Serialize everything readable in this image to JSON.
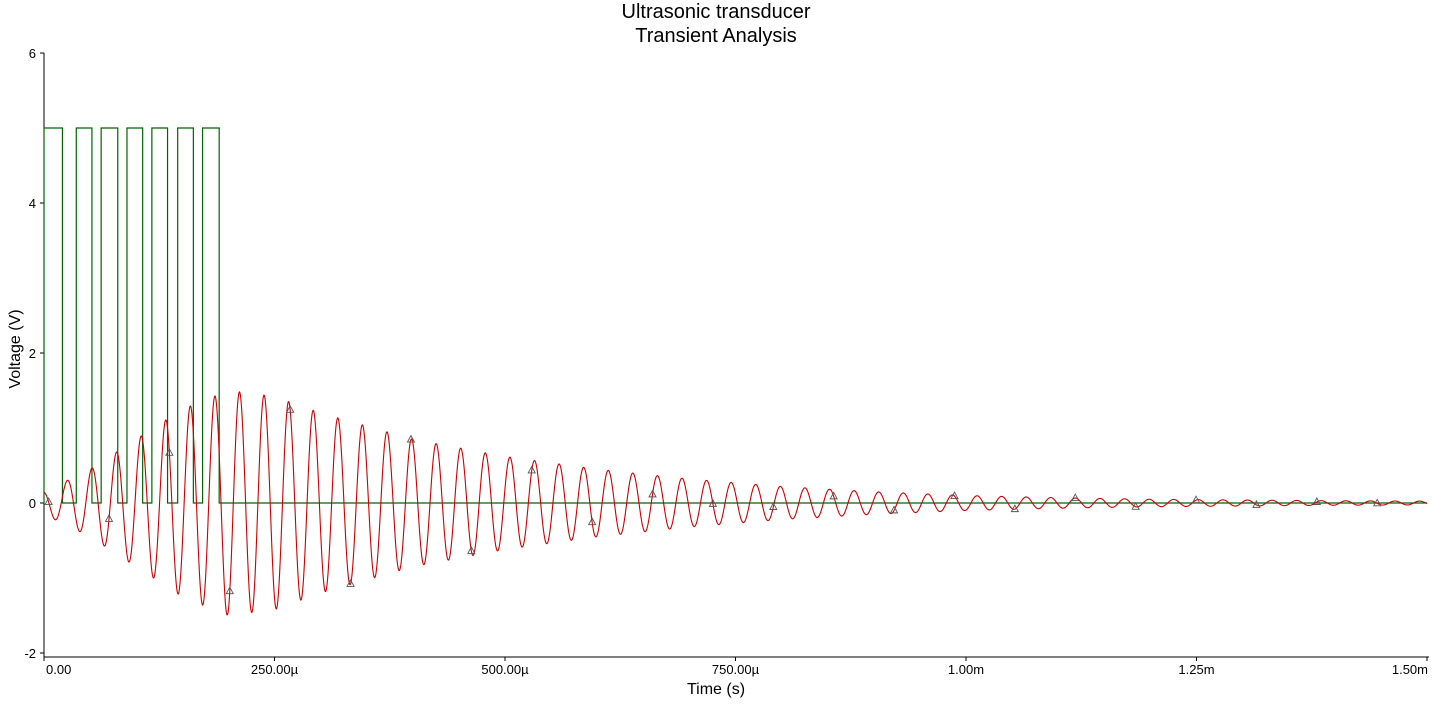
{
  "chart_data": {
    "type": "line",
    "title": "Ultrasonic transducer",
    "subtitle": "Transient Analysis",
    "xlabel": "Time (s)",
    "ylabel": "Voltage (V)",
    "xlim": [
      0,
      0.0015
    ],
    "ylim": [
      -2,
      6
    ],
    "x_ticks": [
      {
        "value": 0,
        "label": "0.00"
      },
      {
        "value": 0.00025,
        "label": "250.00µ"
      },
      {
        "value": 0.0005,
        "label": "500.00µ"
      },
      {
        "value": 0.00075,
        "label": "750.00µ"
      },
      {
        "value": 0.001,
        "label": "1.00m"
      },
      {
        "value": 0.00125,
        "label": "1.25m"
      },
      {
        "value": 0.0015,
        "label": "1.50m"
      }
    ],
    "y_ticks": [
      {
        "value": -2,
        "label": "-2"
      },
      {
        "value": 0,
        "label": "0"
      },
      {
        "value": 2,
        "label": "2"
      },
      {
        "value": 4,
        "label": "4"
      },
      {
        "value": 6,
        "label": "6"
      }
    ],
    "grid": false,
    "series": [
      {
        "color": "#006400",
        "style": "square-pulse-train",
        "high": 5,
        "low": 0,
        "pulses": [
          [
            0,
            2e-05
          ],
          [
            3.5e-05,
            5.2e-05
          ],
          [
            6.2e-05,
            8e-05
          ],
          [
            9e-05,
            0.000107
          ],
          [
            0.000117,
            0.000134
          ],
          [
            0.000145,
            0.000162
          ],
          [
            0.000172,
            0.00019
          ]
        ]
      },
      {
        "color": "#cc0000",
        "style": "damped-oscillation",
        "frequency_hz": 37500,
        "marker": "triangle",
        "envelope": [
          {
            "t": 0,
            "a": 0.15
          },
          {
            "t": 5e-05,
            "a": 0.45
          },
          {
            "t": 0.0001,
            "a": 0.85
          },
          {
            "t": 0.00015,
            "a": 1.25
          },
          {
            "t": 0.0002,
            "a": 1.5
          },
          {
            "t": 0.00025,
            "a": 1.42
          },
          {
            "t": 0.0003,
            "a": 1.2
          },
          {
            "t": 0.0004,
            "a": 0.85
          },
          {
            "t": 0.0005,
            "a": 0.62
          },
          {
            "t": 0.0006,
            "a": 0.45
          },
          {
            "t": 0.0007,
            "a": 0.32
          },
          {
            "t": 0.0008,
            "a": 0.22
          },
          {
            "t": 0.0009,
            "a": 0.15
          },
          {
            "t": 0.001,
            "a": 0.1
          },
          {
            "t": 0.0011,
            "a": 0.07
          },
          {
            "t": 0.0012,
            "a": 0.05
          },
          {
            "t": 0.0013,
            "a": 0.04
          },
          {
            "t": 0.0014,
            "a": 0.03
          },
          {
            "t": 0.0015,
            "a": 0.025
          }
        ]
      }
    ]
  }
}
